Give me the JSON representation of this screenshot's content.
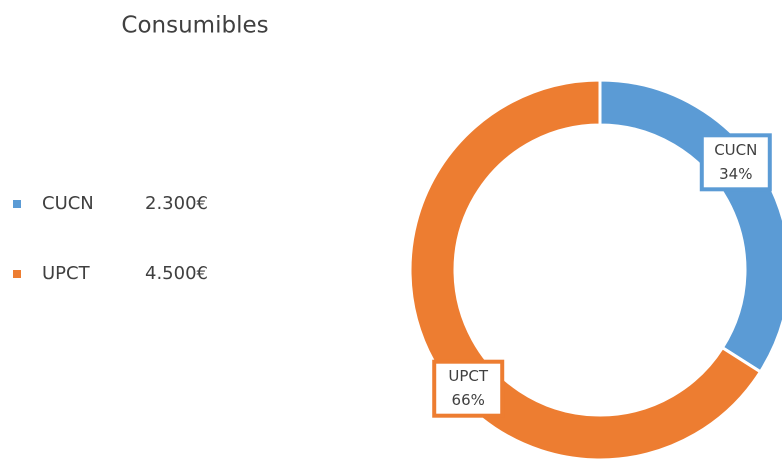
{
  "chart_data": {
    "type": "donut",
    "title": "Consumibles",
    "categories": [
      "CUCN",
      "UPCT"
    ],
    "values": [
      34,
      66
    ],
    "value_labels": [
      "34%",
      "66%"
    ],
    "amounts": [
      "2.300€",
      "4.500€"
    ],
    "colors": [
      "#5b9bd5",
      "#ed7d31"
    ],
    "legend": "left"
  }
}
